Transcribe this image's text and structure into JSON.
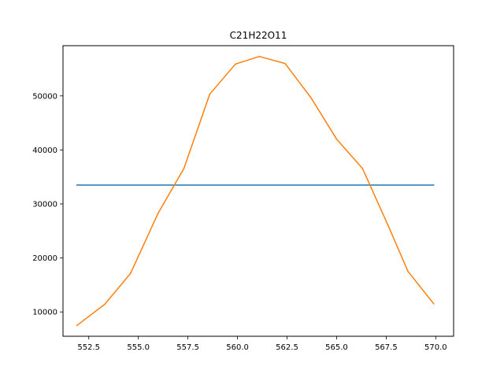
{
  "chart_data": {
    "type": "line",
    "title": "C21H22O11",
    "xlabel": "",
    "ylabel": "",
    "xlim": [
      551.2,
      570.9
    ],
    "ylim": [
      5500,
      59300
    ],
    "xticks": [
      552.5,
      555.0,
      557.5,
      560.0,
      562.5,
      565.0,
      567.5,
      570.0
    ],
    "xtick_labels": [
      "552.5",
      "555.0",
      "557.5",
      "560.0",
      "562.5",
      "565.0",
      "567.5",
      "570.0"
    ],
    "yticks": [
      10000,
      20000,
      30000,
      40000,
      50000
    ],
    "ytick_labels": [
      "10000",
      "20000",
      "30000",
      "40000",
      "50000"
    ],
    "grid": false,
    "series": [
      {
        "color": "#1f77b4",
        "x": [
          551.9,
          569.9
        ],
        "y": [
          33500,
          33500
        ]
      },
      {
        "color": "#ff7f0e",
        "x": [
          551.9,
          553.3,
          554.6,
          556.0,
          557.3,
          558.6,
          559.9,
          561.1,
          562.4,
          563.7,
          565.0,
          566.3,
          567.6,
          568.6,
          569.9
        ],
        "y": [
          7500,
          11400,
          17100,
          28300,
          36600,
          50300,
          55900,
          57300,
          56000,
          49700,
          42000,
          36600,
          26000,
          17500,
          11500
        ]
      }
    ]
  }
}
